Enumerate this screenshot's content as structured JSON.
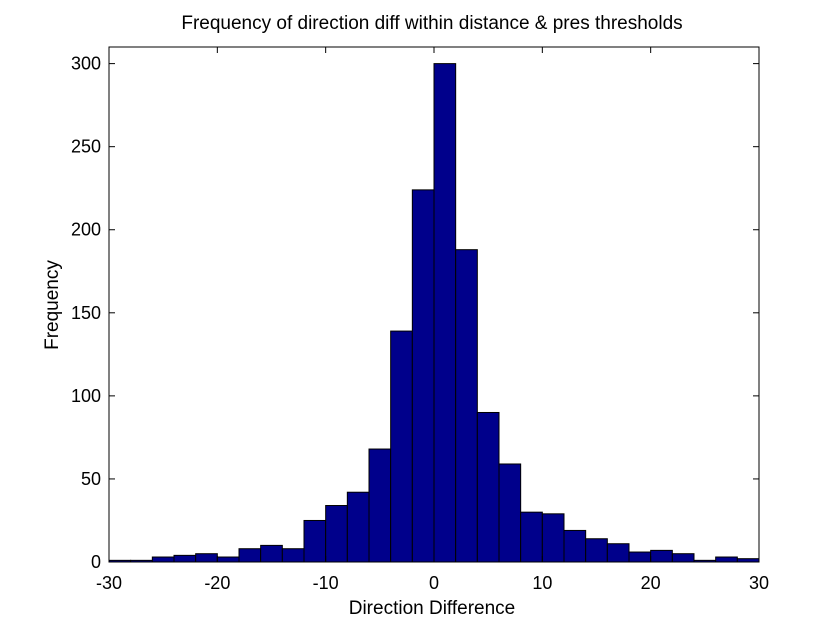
{
  "chart_data": {
    "type": "bar",
    "title": "Frequency of direction diff within distance & pres thresholds",
    "xlabel": "Direction Difference",
    "ylabel": "Frequency",
    "xlim": [
      -30,
      30
    ],
    "ylim": [
      0,
      310
    ],
    "bar_color": "#00008B",
    "grid": false,
    "x_ticks": [
      -30,
      -20,
      -10,
      0,
      10,
      20,
      30
    ],
    "x_tick_labels": [
      "-30",
      "-20",
      "-10",
      "0",
      "10",
      "20",
      "30"
    ],
    "y_ticks": [
      0,
      50,
      100,
      150,
      200,
      250,
      300
    ],
    "y_tick_labels": [
      "0",
      "50",
      "100",
      "150",
      "200",
      "250",
      "300"
    ],
    "bin_edges": [
      -30,
      -28,
      -26,
      -24,
      -22,
      -20,
      -18,
      -16,
      -14,
      -12,
      -10,
      -8,
      -6,
      -4,
      -2,
      0,
      2,
      4,
      6,
      8,
      10,
      12,
      14,
      16,
      18,
      20,
      22,
      24,
      26,
      28,
      30
    ],
    "values": [
      1,
      1,
      3,
      4,
      5,
      3,
      8,
      10,
      8,
      25,
      34,
      42,
      68,
      139,
      224,
      300,
      188,
      90,
      59,
      30,
      29,
      19,
      14,
      11,
      6,
      7,
      5,
      1,
      3,
      2
    ]
  }
}
